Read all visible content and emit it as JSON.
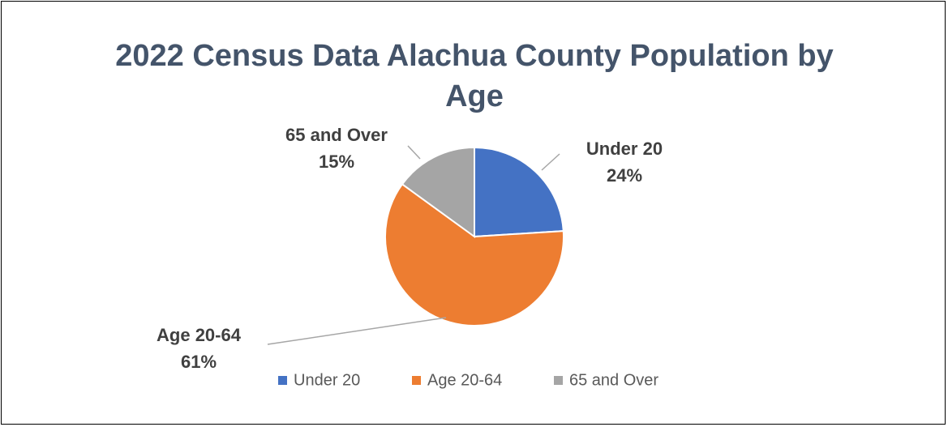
{
  "chart_data": {
    "type": "pie",
    "title": "2022 Census Data Alachua County Population by Age",
    "categories": [
      "Under 20",
      "Age 20-64",
      "65 and Over"
    ],
    "values": [
      24,
      61,
      15
    ],
    "value_labels": [
      "24%",
      "61%",
      "15%"
    ],
    "colors": [
      "#4472c4",
      "#ed7d31",
      "#a5a5a5"
    ],
    "legend": "bottom"
  }
}
